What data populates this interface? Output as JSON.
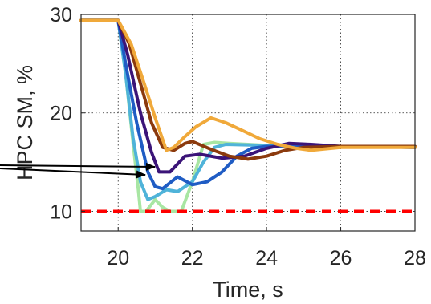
{
  "chart_data": {
    "type": "line",
    "title": "",
    "xlabel": "Time, s",
    "ylabel": "HPC SM, %",
    "xlim": [
      19,
      28
    ],
    "ylim": [
      8,
      30
    ],
    "xticks": [
      20,
      22,
      24,
      26,
      28
    ],
    "yticks": [
      10,
      20,
      30
    ],
    "grid": "dotted",
    "limit_line": {
      "y": 10,
      "color": "#ff0000",
      "style": "dashed"
    },
    "series": [
      {
        "color": "#a8e6a3",
        "points": [
          [
            19,
            29.4
          ],
          [
            20,
            29.4
          ],
          [
            20.2,
            24
          ],
          [
            20.4,
            17
          ],
          [
            20.55,
            12
          ],
          [
            20.6,
            10
          ],
          [
            20.75,
            10
          ],
          [
            21.0,
            11.2
          ],
          [
            21.2,
            10.4
          ],
          [
            21.4,
            10
          ],
          [
            21.7,
            10
          ],
          [
            22.0,
            13
          ],
          [
            22.3,
            16.8
          ],
          [
            22.6,
            17.0
          ],
          [
            23,
            16.9
          ],
          [
            24,
            16.7
          ],
          [
            26,
            16.6
          ],
          [
            28,
            16.5
          ]
        ]
      },
      {
        "color": "#4fb3d9",
        "points": [
          [
            19,
            29.4
          ],
          [
            20,
            29.4
          ],
          [
            20.2,
            24
          ],
          [
            20.4,
            17.5
          ],
          [
            20.6,
            13
          ],
          [
            20.8,
            11.2
          ],
          [
            21.0,
            11.5
          ],
          [
            21.3,
            12.2
          ],
          [
            21.6,
            12.0
          ],
          [
            22.0,
            13
          ],
          [
            22.3,
            15
          ],
          [
            22.6,
            16.5
          ],
          [
            22.9,
            16.8
          ],
          [
            24,
            16.7
          ],
          [
            26,
            16.6
          ],
          [
            28,
            16.5
          ]
        ]
      },
      {
        "color": "#1f5cc4",
        "points": [
          [
            19,
            29.4
          ],
          [
            20,
            29.4
          ],
          [
            20.2,
            25
          ],
          [
            20.5,
            19
          ],
          [
            20.8,
            14
          ],
          [
            21.0,
            12.5
          ],
          [
            21.2,
            12.3
          ],
          [
            21.6,
            13.5
          ],
          [
            22.0,
            12.7
          ],
          [
            22.4,
            13
          ],
          [
            22.8,
            14
          ],
          [
            23.2,
            15.6
          ],
          [
            23.6,
            16.4
          ],
          [
            24,
            16.6
          ],
          [
            26,
            16.6
          ],
          [
            28,
            16.5
          ]
        ]
      },
      {
        "color": "#3b1478",
        "points": [
          [
            19,
            29.4
          ],
          [
            20,
            29.4
          ],
          [
            20.25,
            26
          ],
          [
            20.6,
            20
          ],
          [
            20.9,
            16
          ],
          [
            21.1,
            14
          ],
          [
            21.4,
            14
          ],
          [
            21.8,
            15.6
          ],
          [
            22.2,
            15.8
          ],
          [
            22.8,
            15.4
          ],
          [
            23.4,
            15.6
          ],
          [
            24.0,
            16.4
          ],
          [
            24.6,
            16.9
          ],
          [
            25.2,
            16.8
          ],
          [
            26,
            16.6
          ],
          [
            28,
            16.5
          ]
        ]
      },
      {
        "color": "#8b3a0d",
        "points": [
          [
            19,
            29.4
          ],
          [
            20,
            29.4
          ],
          [
            20.3,
            27
          ],
          [
            20.6,
            23
          ],
          [
            20.9,
            19
          ],
          [
            21.2,
            16.5
          ],
          [
            21.5,
            16.2
          ],
          [
            21.8,
            16.9
          ],
          [
            22.0,
            17.1
          ],
          [
            22.5,
            16.3
          ],
          [
            23,
            15.6
          ],
          [
            23.5,
            15.3
          ],
          [
            24,
            15.6
          ],
          [
            24.5,
            16.2
          ],
          [
            25,
            16.5
          ],
          [
            26,
            16.6
          ],
          [
            28,
            16.6
          ]
        ]
      },
      {
        "color": "#f0a93a",
        "points": [
          [
            19,
            29.4
          ],
          [
            20,
            29.4
          ],
          [
            20.35,
            27
          ],
          [
            20.7,
            23
          ],
          [
            21.0,
            19.5
          ],
          [
            21.3,
            16.2
          ],
          [
            21.5,
            16.5
          ],
          [
            21.8,
            17.6
          ],
          [
            22.1,
            18.6
          ],
          [
            22.5,
            19.5
          ],
          [
            22.9,
            19.0
          ],
          [
            23.3,
            18.3
          ],
          [
            23.8,
            17.4
          ],
          [
            24.3,
            16.8
          ],
          [
            24.8,
            16.4
          ],
          [
            25.2,
            16.2
          ],
          [
            26,
            16.5
          ],
          [
            28,
            16.5
          ]
        ]
      }
    ]
  }
}
